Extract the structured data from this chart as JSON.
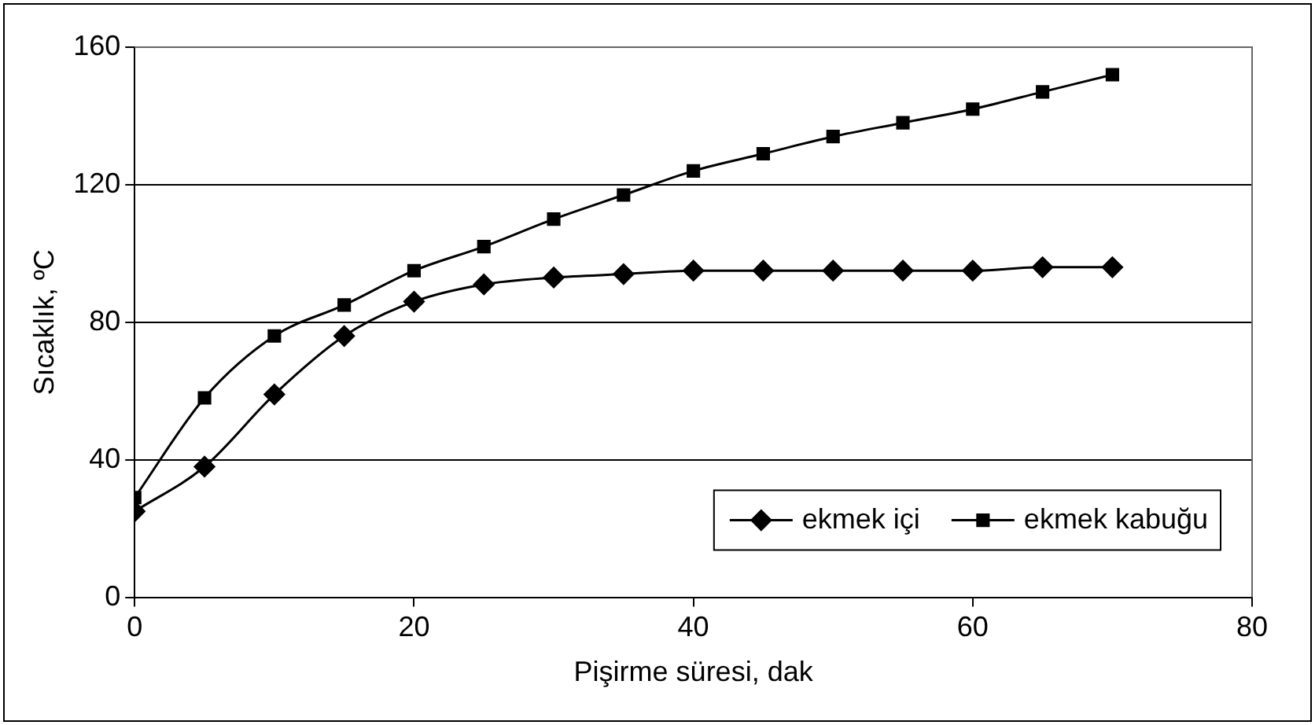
{
  "chart_data": {
    "type": "line",
    "xlabel": "Pişirme süresi, dak",
    "ylabel": "Sıcaklık, ºC",
    "x": [
      0,
      5,
      10,
      15,
      20,
      25,
      30,
      35,
      40,
      45,
      50,
      55,
      60,
      65,
      70
    ],
    "series": [
      {
        "name": "ekmek içi",
        "color": "#000000",
        "marker": "diamond",
        "values": [
          25,
          38,
          59,
          76,
          86,
          91,
          93,
          94,
          95,
          95,
          95,
          95,
          95,
          96,
          96
        ]
      },
      {
        "name": "ekmek kabuğu",
        "color": "#000000",
        "marker": "square",
        "values": [
          29,
          58,
          76,
          85,
          95,
          102,
          110,
          117,
          124,
          129,
          134,
          138,
          142,
          147,
          152
        ]
      }
    ],
    "xlim": [
      0,
      80
    ],
    "xticks": [
      0,
      20,
      40,
      60,
      80
    ],
    "ylim": [
      0,
      160
    ],
    "yticks": [
      0,
      40,
      80,
      120,
      160
    ],
    "grid": "y",
    "legend": "bottom right",
    "line_style": "solid"
  }
}
